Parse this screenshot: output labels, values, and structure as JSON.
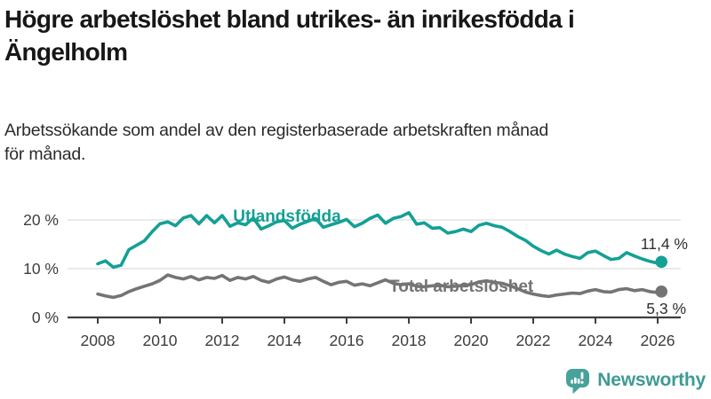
{
  "header": {
    "title": "Högre arbetslöshet bland utrikes- än inrikesfödda i\nÄngelholm",
    "subtitle": "Arbetssökande som andel av den registerbaserade arbetskraften månad\nför månad."
  },
  "chart_data": {
    "type": "line",
    "title": "Högre arbetslöshet bland utrikes- än inrikesfödda i Ängelholm",
    "subtitle": "Arbetssökande som andel av den registerbaserade arbetskraften månad för månad.",
    "unit": "%",
    "xlim": [
      2008,
      2026.4
    ],
    "ylim": [
      0,
      24
    ],
    "grid": "horizontal",
    "x_ticks": [
      {
        "value": 2008,
        "label": "2008"
      },
      {
        "value": 2010,
        "label": "2010"
      },
      {
        "value": 2012,
        "label": "2012"
      },
      {
        "value": 2014,
        "label": "2014"
      },
      {
        "value": 2016,
        "label": "2016"
      },
      {
        "value": 2018,
        "label": "2018"
      },
      {
        "value": 2020,
        "label": "2020"
      },
      {
        "value": 2022,
        "label": "2022"
      },
      {
        "value": 2024,
        "label": "2024"
      },
      {
        "value": 2026,
        "label": "2026"
      }
    ],
    "y_ticks": [
      {
        "value": 0,
        "label": "0 %"
      },
      {
        "value": 10,
        "label": "10 %"
      },
      {
        "value": 20,
        "label": "20 %"
      }
    ],
    "series": [
      {
        "name": "Utlandsfödda",
        "color": "#14A095",
        "end_label": "11,4 %",
        "end_value": 11.4,
        "points": [
          [
            2008.0,
            11.0
          ],
          [
            2008.25,
            11.6
          ],
          [
            2008.5,
            10.3
          ],
          [
            2008.75,
            10.7
          ],
          [
            2009.0,
            13.9
          ],
          [
            2009.25,
            14.8
          ],
          [
            2009.5,
            15.7
          ],
          [
            2009.75,
            17.6
          ],
          [
            2010.0,
            19.2
          ],
          [
            2010.25,
            19.6
          ],
          [
            2010.5,
            18.8
          ],
          [
            2010.75,
            20.4
          ],
          [
            2011.0,
            20.9
          ],
          [
            2011.25,
            19.2
          ],
          [
            2011.5,
            20.9
          ],
          [
            2011.75,
            19.4
          ],
          [
            2012.0,
            20.9
          ],
          [
            2012.25,
            18.7
          ],
          [
            2012.5,
            19.4
          ],
          [
            2012.75,
            19.0
          ],
          [
            2013.0,
            20.4
          ],
          [
            2013.25,
            18.1
          ],
          [
            2013.5,
            18.8
          ],
          [
            2013.75,
            19.6
          ],
          [
            2014.0,
            19.9
          ],
          [
            2014.25,
            18.3
          ],
          [
            2014.5,
            19.1
          ],
          [
            2014.75,
            19.7
          ],
          [
            2015.0,
            20.3
          ],
          [
            2015.25,
            18.5
          ],
          [
            2015.5,
            19.0
          ],
          [
            2015.75,
            19.5
          ],
          [
            2016.0,
            20.1
          ],
          [
            2016.25,
            18.6
          ],
          [
            2016.5,
            19.3
          ],
          [
            2016.75,
            20.3
          ],
          [
            2017.0,
            21.0
          ],
          [
            2017.25,
            19.3
          ],
          [
            2017.5,
            20.3
          ],
          [
            2017.75,
            20.7
          ],
          [
            2018.0,
            21.5
          ],
          [
            2018.25,
            19.1
          ],
          [
            2018.5,
            19.4
          ],
          [
            2018.75,
            18.3
          ],
          [
            2019.0,
            18.4
          ],
          [
            2019.25,
            17.3
          ],
          [
            2019.5,
            17.6
          ],
          [
            2019.75,
            18.1
          ],
          [
            2020.0,
            17.6
          ],
          [
            2020.25,
            18.9
          ],
          [
            2020.5,
            19.3
          ],
          [
            2020.75,
            18.8
          ],
          [
            2021.0,
            18.5
          ],
          [
            2021.25,
            17.6
          ],
          [
            2021.5,
            16.6
          ],
          [
            2021.75,
            15.8
          ],
          [
            2022.0,
            14.6
          ],
          [
            2022.25,
            13.7
          ],
          [
            2022.5,
            13.0
          ],
          [
            2022.75,
            13.8
          ],
          [
            2023.0,
            13.0
          ],
          [
            2023.25,
            12.5
          ],
          [
            2023.5,
            12.1
          ],
          [
            2023.75,
            13.3
          ],
          [
            2024.0,
            13.6
          ],
          [
            2024.25,
            12.7
          ],
          [
            2024.5,
            11.9
          ],
          [
            2024.75,
            12.1
          ],
          [
            2025.0,
            13.3
          ],
          [
            2025.25,
            12.6
          ],
          [
            2025.5,
            12.0
          ],
          [
            2025.75,
            11.5
          ],
          [
            2026.0,
            11.1
          ],
          [
            2026.12,
            11.4
          ]
        ]
      },
      {
        "name": "Total arbetslöshet",
        "color": "#747474",
        "end_label": "5,3 %",
        "end_value": 5.3,
        "points": [
          [
            2008.0,
            4.8
          ],
          [
            2008.25,
            4.4
          ],
          [
            2008.5,
            4.1
          ],
          [
            2008.75,
            4.5
          ],
          [
            2009.0,
            5.3
          ],
          [
            2009.25,
            5.9
          ],
          [
            2009.5,
            6.4
          ],
          [
            2009.75,
            6.9
          ],
          [
            2010.0,
            7.6
          ],
          [
            2010.25,
            8.7
          ],
          [
            2010.5,
            8.2
          ],
          [
            2010.75,
            7.9
          ],
          [
            2011.0,
            8.4
          ],
          [
            2011.25,
            7.7
          ],
          [
            2011.5,
            8.2
          ],
          [
            2011.75,
            8.0
          ],
          [
            2012.0,
            8.6
          ],
          [
            2012.25,
            7.6
          ],
          [
            2012.5,
            8.2
          ],
          [
            2012.75,
            7.9
          ],
          [
            2013.0,
            8.4
          ],
          [
            2013.25,
            7.6
          ],
          [
            2013.5,
            7.2
          ],
          [
            2013.75,
            7.9
          ],
          [
            2014.0,
            8.3
          ],
          [
            2014.25,
            7.7
          ],
          [
            2014.5,
            7.4
          ],
          [
            2014.75,
            7.9
          ],
          [
            2015.0,
            8.2
          ],
          [
            2015.25,
            7.4
          ],
          [
            2015.5,
            6.7
          ],
          [
            2015.75,
            7.2
          ],
          [
            2016.0,
            7.4
          ],
          [
            2016.25,
            6.6
          ],
          [
            2016.5,
            6.9
          ],
          [
            2016.75,
            6.5
          ],
          [
            2017.0,
            7.1
          ],
          [
            2017.25,
            7.7
          ],
          [
            2017.5,
            7.0
          ],
          [
            2017.75,
            6.7
          ],
          [
            2018.0,
            6.9
          ],
          [
            2018.25,
            6.4
          ],
          [
            2018.5,
            6.3
          ],
          [
            2018.75,
            6.5
          ],
          [
            2019.0,
            6.6
          ],
          [
            2019.25,
            6.3
          ],
          [
            2019.5,
            6.4
          ],
          [
            2019.75,
            6.6
          ],
          [
            2020.0,
            6.7
          ],
          [
            2020.25,
            7.3
          ],
          [
            2020.5,
            7.5
          ],
          [
            2020.75,
            7.2
          ],
          [
            2021.0,
            7.0
          ],
          [
            2021.25,
            6.5
          ],
          [
            2021.5,
            5.9
          ],
          [
            2021.75,
            5.2
          ],
          [
            2022.0,
            4.8
          ],
          [
            2022.25,
            4.5
          ],
          [
            2022.5,
            4.3
          ],
          [
            2022.75,
            4.6
          ],
          [
            2023.0,
            4.8
          ],
          [
            2023.25,
            5.0
          ],
          [
            2023.5,
            4.9
          ],
          [
            2023.75,
            5.4
          ],
          [
            2024.0,
            5.7
          ],
          [
            2024.25,
            5.3
          ],
          [
            2024.5,
            5.2
          ],
          [
            2024.75,
            5.7
          ],
          [
            2025.0,
            5.9
          ],
          [
            2025.25,
            5.5
          ],
          [
            2025.5,
            5.7
          ],
          [
            2025.75,
            5.3
          ],
          [
            2026.0,
            5.1
          ],
          [
            2026.12,
            5.3
          ]
        ]
      }
    ]
  },
  "footer": {
    "brand": "Newsworthy"
  }
}
